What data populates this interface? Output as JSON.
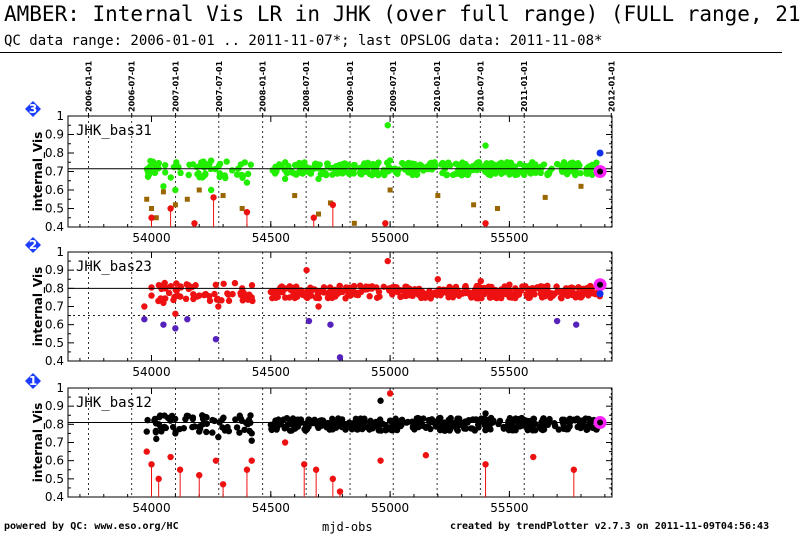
{
  "header": {
    "title": "AMBER: Internal Vis LR in JHK (over full range) (FULL range, 21",
    "subtitle": "QC data range: 2006-01-01 .. 2011-11-07*; last OPSLOG data: 2011-11-08*"
  },
  "footer": {
    "left": "powered by QC: www.eso.org/HC",
    "xlabel": "mjd-obs",
    "right": "created by trendPlotter v2.7.3 on 2011-11-09T04:56:43"
  },
  "colors": {
    "green": "#22ee00",
    "red": "#ee1111",
    "black": "#000000",
    "brown": "#996600",
    "purple": "#5522bb",
    "magenta": "#ff22ff",
    "blue": "#1133ee",
    "badge": "#1a3dff"
  },
  "chart_data": [
    {
      "type": "scatter",
      "panel_number": "3",
      "label": "JHK_bas31",
      "ylabel": "internal_Vis",
      "xlim": [
        53650,
        55930
      ],
      "ylim": [
        0.4,
        1.0
      ],
      "yticks": [
        "0.4",
        "0.5",
        "0.6",
        "0.7",
        "0.8",
        "0.9",
        "1"
      ],
      "xticks": [
        "54000",
        "54500",
        "55000",
        "55500"
      ],
      "ref_line": 0.715,
      "date_ticks": [
        "2006-01-01",
        "2006-07-01",
        "2007-01-01",
        "2007-07-01",
        "2008-01-01",
        "2008-07-01",
        "2009-01-01",
        "2009-07-01",
        "2010-01-01",
        "2010-07-01",
        "2011-01-01",
        "2012-01-01"
      ],
      "date_mjd": [
        53736,
        53917,
        54101,
        54282,
        54466,
        54648,
        54832,
        55013,
        55197,
        55378,
        55562,
        55927
      ],
      "series": [
        {
          "color_key": "green",
          "value": 0.715,
          "dots": [
            [
              54050,
              0.62
            ],
            [
              54100,
              0.6
            ],
            [
              54250,
              0.6
            ],
            [
              54400,
              0.64
            ],
            [
              54520,
              0.7
            ],
            [
              54560,
              0.66
            ],
            [
              54620,
              0.74
            ],
            [
              54700,
              0.66
            ],
            [
              54800,
              0.69
            ],
            [
              54990,
              0.95
            ],
            [
              55000,
              0.76
            ],
            [
              55300,
              0.68
            ],
            [
              55400,
              0.84
            ],
            [
              55700,
              0.74
            ],
            [
              55870,
              0.7
            ]
          ]
        },
        {
          "color_key": "brown",
          "dots": [
            [
              53980,
              0.55
            ],
            [
              54000,
              0.5
            ],
            [
              54020,
              0.45
            ],
            [
              54050,
              0.59
            ],
            [
              54100,
              0.52
            ],
            [
              54150,
              0.55
            ],
            [
              54200,
              0.6
            ],
            [
              54300,
              0.57
            ],
            [
              54380,
              0.5
            ],
            [
              54600,
              0.57
            ],
            [
              54700,
              0.47
            ],
            [
              54750,
              0.53
            ],
            [
              54850,
              0.42
            ],
            [
              55000,
              0.6
            ],
            [
              55200,
              0.57
            ],
            [
              55350,
              0.52
            ],
            [
              55450,
              0.5
            ],
            [
              55650,
              0.56
            ],
            [
              55800,
              0.62
            ]
          ]
        },
        {
          "color_key": "red",
          "dots": [
            [
              54000,
              0.45
            ],
            [
              54080,
              0.5
            ],
            [
              54180,
              0.42
            ],
            [
              54260,
              0.56
            ],
            [
              54400,
              0.48
            ],
            [
              54680,
              0.45
            ],
            [
              54760,
              0.52
            ],
            [
              54980,
              0.42
            ],
            [
              55400,
              0.42
            ]
          ]
        }
      ],
      "markers": [
        [
          55880,
          0.7,
          "magenta"
        ],
        [
          55880,
          0.8,
          "blue"
        ]
      ]
    },
    {
      "type": "scatter",
      "panel_number": "2",
      "label": "JHK_bas23",
      "ylabel": "internal_Vis",
      "xlim": [
        53650,
        55930
      ],
      "ylim": [
        0.4,
        1.0
      ],
      "yticks": [
        "0.4",
        "0.5",
        "0.6",
        "0.7",
        "0.8",
        "0.9",
        "1"
      ],
      "xticks": [
        "54000",
        "54500",
        "55000",
        "55500"
      ],
      "ref_line": 0.8,
      "ref_line_dotted": 0.65,
      "series": [
        {
          "color_key": "red",
          "value": 0.78,
          "dots": [
            [
              53970,
              0.7
            ],
            [
              54000,
              0.76
            ],
            [
              54050,
              0.72
            ],
            [
              54100,
              0.66
            ],
            [
              54200,
              0.76
            ],
            [
              54280,
              0.7
            ],
            [
              54380,
              0.8
            ],
            [
              54420,
              0.75
            ],
            [
              54500,
              0.78
            ],
            [
              54600,
              0.78
            ],
            [
              54650,
              0.9
            ],
            [
              54700,
              0.7
            ],
            [
              54800,
              0.78
            ],
            [
              54990,
              0.95
            ],
            [
              55000,
              0.8
            ],
            [
              55200,
              0.85
            ],
            [
              55380,
              0.84
            ],
            [
              55500,
              0.82
            ],
            [
              55700,
              0.78
            ],
            [
              55800,
              0.75
            ]
          ]
        },
        {
          "color_key": "purple",
          "dots": [
            [
              53970,
              0.63
            ],
            [
              54050,
              0.6
            ],
            [
              54100,
              0.58
            ],
            [
              54150,
              0.63
            ],
            [
              54270,
              0.52
            ],
            [
              54660,
              0.62
            ],
            [
              54750,
              0.6
            ],
            [
              54790,
              0.42
            ],
            [
              55700,
              0.62
            ],
            [
              55780,
              0.6
            ]
          ]
        }
      ],
      "markers": [
        [
          55880,
          0.82,
          "magenta"
        ],
        [
          55880,
          0.77,
          "blue"
        ]
      ]
    },
    {
      "type": "scatter",
      "panel_number": "1",
      "label": "JHK_bas12",
      "ylabel": "internal_Vis",
      "xlim": [
        53650,
        55930
      ],
      "ylim": [
        0.4,
        1.0
      ],
      "yticks": [
        "0.4",
        "0.5",
        "0.6",
        "0.7",
        "0.8",
        "0.9",
        "1"
      ],
      "xticks": [
        "54000",
        "54500",
        "55000",
        "55500"
      ],
      "ref_line": 0.81,
      "series": [
        {
          "color_key": "black",
          "value": 0.8,
          "dots": [
            [
              53980,
              0.76
            ],
            [
              54020,
              0.72
            ],
            [
              54060,
              0.78
            ],
            [
              54100,
              0.75
            ],
            [
              54200,
              0.76
            ],
            [
              54280,
              0.73
            ],
            [
              54390,
              0.77
            ],
            [
              54420,
              0.71
            ],
            [
              54520,
              0.8
            ],
            [
              54600,
              0.78
            ],
            [
              54700,
              0.8
            ],
            [
              54800,
              0.8
            ],
            [
              54960,
              0.93
            ],
            [
              55000,
              0.82
            ],
            [
              55200,
              0.82
            ],
            [
              55400,
              0.86
            ],
            [
              55600,
              0.8
            ],
            [
              55800,
              0.82
            ]
          ]
        },
        {
          "color_key": "red",
          "dots": [
            [
              53980,
              0.65
            ],
            [
              54000,
              0.58
            ],
            [
              54030,
              0.5
            ],
            [
              54080,
              0.62
            ],
            [
              54120,
              0.55
            ],
            [
              54200,
              0.52
            ],
            [
              54270,
              0.6
            ],
            [
              54300,
              0.47
            ],
            [
              54400,
              0.55
            ],
            [
              54420,
              0.6
            ],
            [
              54560,
              0.7
            ],
            [
              54640,
              0.58
            ],
            [
              54690,
              0.55
            ],
            [
              54760,
              0.5
            ],
            [
              54790,
              0.43
            ],
            [
              54960,
              0.6
            ],
            [
              55000,
              0.97
            ],
            [
              55150,
              0.63
            ],
            [
              55400,
              0.58
            ],
            [
              55600,
              0.62
            ],
            [
              55770,
              0.55
            ]
          ]
        }
      ],
      "markers": [
        [
          55880,
          0.81,
          "magenta"
        ]
      ]
    }
  ]
}
